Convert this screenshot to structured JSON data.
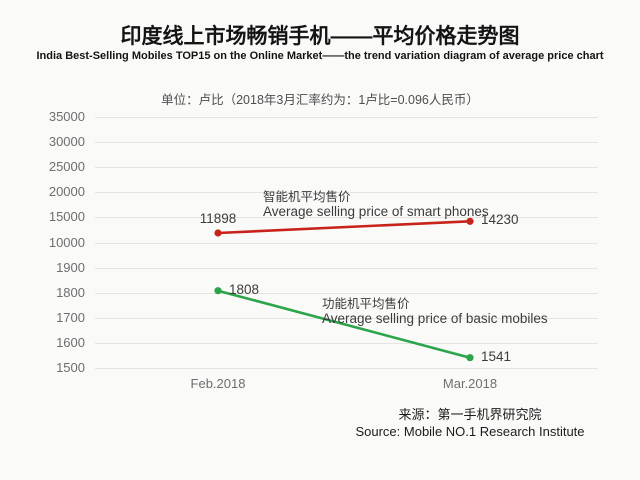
{
  "header": {
    "title_zh": "印度线上市场畅销手机——平均价格走势图",
    "title_en": "India Best-Selling  Mobiles TOP15 on the Online Market——the trend variation diagram of average price chart",
    "unit_note": "单位：卢比（2018年3月汇率约为：1卢比=0.096人民币）"
  },
  "footer": {
    "source_zh": "来源：第一手机界研究院",
    "source_en": "Source: Mobile NO.1 Research Institute"
  },
  "colors": {
    "smartphone_line": "#c8231b",
    "basic_line": "#2ba44a",
    "grid": "#e4e4e2",
    "tick_text": "#6e6e6e",
    "label_text": "#3c3c3c",
    "background": "#fafaf9"
  },
  "chart_data": {
    "type": "line",
    "title": "印度线上市场畅销手机——平均价格走势图",
    "subtitle": "India Best-Selling  Mobiles TOP15 on the Online Market——the trend variation diagram of average price chart",
    "unit": "卢比 (Rupee)",
    "categories": [
      "Feb.2018",
      "Mar.2018"
    ],
    "series": [
      {
        "id": "smartphones",
        "name_zh": "智能机平均售价",
        "name_en": "Average selling price of smart phones",
        "values": [
          11898,
          14230
        ],
        "color": "#c8231b",
        "label_sides": [
          "above",
          "right"
        ]
      },
      {
        "id": "basic-mobiles",
        "name_zh": "功能机平均售价",
        "name_en": "Average selling price of basic mobiles",
        "values": [
          1808,
          1541
        ],
        "color": "#2ba44a",
        "label_sides": [
          "right",
          "right"
        ]
      }
    ],
    "yticks": [
      1500,
      1600,
      1700,
      1800,
      1900,
      10000,
      15000,
      20000,
      25000,
      30000,
      35000
    ],
    "ytick_labels": [
      "1500",
      "1600",
      "1700",
      "1800",
      "1900",
      "10000",
      "15000",
      "20000",
      "25000",
      "30000",
      "35000"
    ],
    "broken_axis": true,
    "grid": true,
    "legend_position": "inline-annotations",
    "markers": "circle"
  }
}
